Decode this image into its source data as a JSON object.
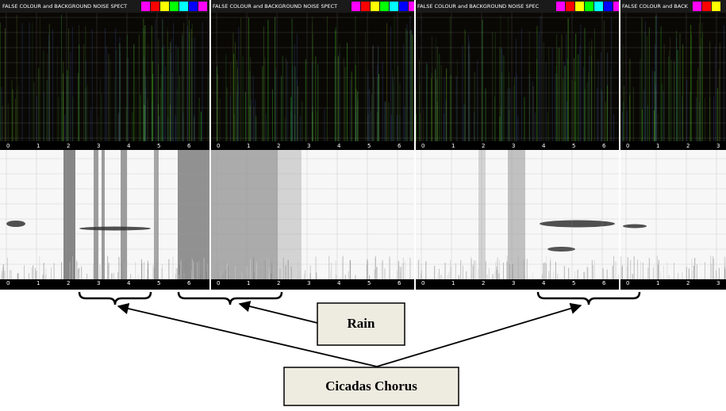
{
  "panels": [
    {
      "title": "FALSE COLOUR and BACKGROUND NOISE SPECT",
      "ticks": [
        0,
        1,
        2,
        3,
        4,
        5,
        6
      ]
    },
    {
      "title": "FALSE COLOUR and BACKGROUND NOISE SPECT",
      "ticks": [
        0,
        1,
        2,
        3,
        4,
        5,
        6
      ]
    },
    {
      "title": "FALSE COLOUR and BACKGROUND NOISE SPEC",
      "ticks": [
        0,
        1,
        2,
        3,
        4,
        5,
        6
      ]
    },
    {
      "title": "FALSE COLOUR and BACK",
      "ticks": [
        0,
        1,
        2,
        3
      ]
    }
  ],
  "annotations": {
    "rain": "Rain",
    "cicadas": "Cicadas Chorus"
  }
}
